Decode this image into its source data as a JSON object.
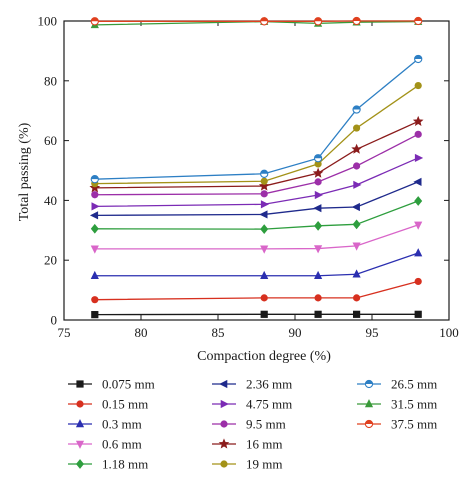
{
  "chart_data": {
    "type": "line",
    "xlabel": "Compaction degree (%)",
    "ylabel": "Total passing (%)",
    "xlim": [
      75,
      100
    ],
    "ylim": [
      0,
      100
    ],
    "xticks": [
      "75",
      "80",
      "85",
      "90",
      "95",
      "100"
    ],
    "yticks": [
      "0",
      "20",
      "40",
      "60",
      "80",
      "100"
    ],
    "grid": false,
    "legend_position": "bottom",
    "x": [
      77,
      88,
      91.5,
      94,
      98
    ],
    "series": [
      {
        "name": "0.075 mm",
        "color": "#1a1a1a",
        "marker": "square",
        "values": [
          1.8,
          1.9,
          1.9,
          1.9,
          1.9
        ]
      },
      {
        "name": "0.15 mm",
        "color": "#d7301f",
        "marker": "circle",
        "values": [
          6.8,
          7.4,
          7.4,
          7.4,
          12.9
        ]
      },
      {
        "name": "0.3 mm",
        "color": "#2b2fb0",
        "marker": "triangle-up",
        "values": [
          14.8,
          14.8,
          14.8,
          15.3,
          22.4
        ]
      },
      {
        "name": "0.6 mm",
        "color": "#d966c9",
        "marker": "triangle-down",
        "values": [
          23.8,
          23.8,
          23.9,
          24.8,
          31.8
        ]
      },
      {
        "name": "1.18 mm",
        "color": "#2e9e3e",
        "marker": "diamond",
        "values": [
          30.5,
          30.4,
          31.5,
          32.0,
          39.8
        ]
      },
      {
        "name": "2.36 mm",
        "color": "#1f2a8c",
        "marker": "triangle-left",
        "values": [
          35.0,
          35.3,
          37.4,
          37.8,
          46.2
        ]
      },
      {
        "name": "4.75 mm",
        "color": "#7b2bb5",
        "marker": "triangle-right",
        "values": [
          38.0,
          38.7,
          41.8,
          45.2,
          54.2
        ]
      },
      {
        "name": "9.5 mm",
        "color": "#9c2fa8",
        "marker": "circle",
        "values": [
          41.9,
          42.2,
          46.2,
          51.5,
          62.1
        ]
      },
      {
        "name": "16 mm",
        "color": "#8b1c1c",
        "marker": "star",
        "values": [
          44.2,
          44.8,
          49.1,
          57.1,
          66.4
        ]
      },
      {
        "name": "19 mm",
        "color": "#a39218",
        "marker": "circle",
        "values": [
          45.6,
          46.4,
          52.2,
          64.2,
          78.4
        ]
      },
      {
        "name": "26.5 mm",
        "color": "#2d7fc4",
        "marker": "half-circle",
        "values": [
          47.1,
          48.9,
          54.1,
          70.4,
          87.3
        ]
      },
      {
        "name": "31.5 mm",
        "color": "#3a9a3a",
        "marker": "triangle-up",
        "values": [
          98.7,
          99.8,
          99.2,
          99.6,
          99.8
        ]
      },
      {
        "name": "37.5 mm",
        "color": "#e0401f",
        "marker": "half-circle",
        "values": [
          99.9,
          99.9,
          99.9,
          100.0,
          100.0
        ]
      }
    ]
  }
}
